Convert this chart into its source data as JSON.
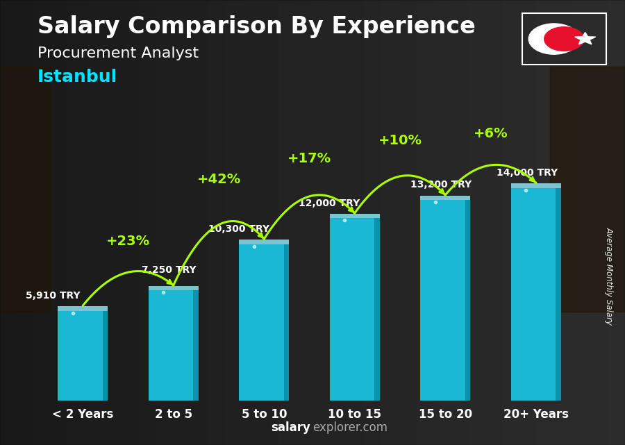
{
  "title": "Salary Comparison By Experience",
  "subtitle": "Procurement Analyst",
  "city": "Istanbul",
  "ylabel": "Average Monthly Salary",
  "categories": [
    "< 2 Years",
    "2 to 5",
    "5 to 10",
    "10 to 15",
    "15 to 20",
    "20+ Years"
  ],
  "values": [
    5910,
    7250,
    10300,
    12000,
    13200,
    14000
  ],
  "value_labels": [
    "5,910 TRY",
    "7,250 TRY",
    "10,300 TRY",
    "12,000 TRY",
    "13,200 TRY",
    "14,000 TRY"
  ],
  "pct_labels": [
    "+23%",
    "+42%",
    "+17%",
    "+10%",
    "+6%"
  ],
  "bar_color_main": "#1BB8D4",
  "bar_color_light": "#50D0E8",
  "bar_color_dark": "#0A8FA8",
  "bar_color_top": "#90E0F0",
  "title_color": "#FFFFFF",
  "subtitle_color": "#FFFFFF",
  "city_color": "#00E5FF",
  "value_label_color": "#FFFFFF",
  "pct_color": "#AAFF00",
  "arrow_color": "#AAFF00",
  "xticklabel_color": "#00E5FF",
  "watermark_salary_color": "#FFFFFF",
  "watermark_explorer_color": "#AAAAAA",
  "flag_red": "#E8112D",
  "title_fontsize": 24,
  "subtitle_fontsize": 16,
  "city_fontsize": 18,
  "value_fontsize": 10,
  "pct_fontsize": 14,
  "xtick_fontsize": 12,
  "ylim": [
    0,
    17000
  ],
  "bar_width": 0.55
}
